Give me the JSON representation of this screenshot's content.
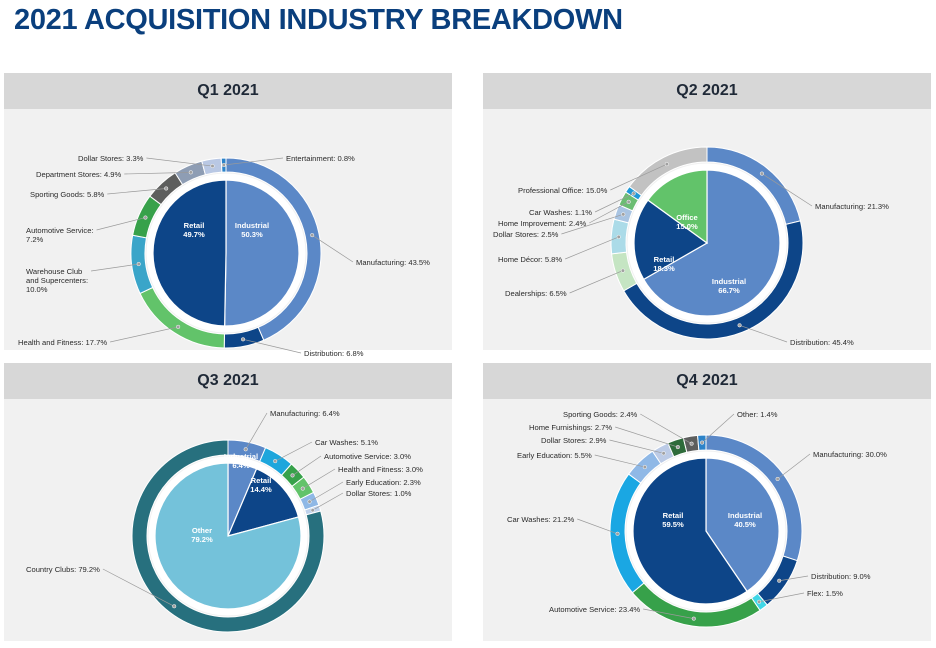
{
  "title": "2021 ACQUISITION INDUSTRY BREAKDOWN",
  "chart_data": [
    {
      "type": "pie",
      "title": "Q1 2021",
      "inner": [
        {
          "name": "Industrial",
          "value": 50.3,
          "color": "#5b88c7"
        },
        {
          "name": "Retail",
          "value": 49.7,
          "color": "#0d4588"
        }
      ],
      "outer": [
        {
          "name": "Manufacturing",
          "value": 43.5,
          "color": "#5b88c7"
        },
        {
          "name": "Distribution",
          "value": 6.8,
          "color": "#0d4588"
        },
        {
          "name": "Health and Fitness",
          "value": 17.7,
          "color": "#62c36a"
        },
        {
          "name": "Warehouse Club and Supercenters",
          "value": 10.0,
          "color": "#3aa5c9"
        },
        {
          "name": "Automotive Service",
          "value": 7.2,
          "color": "#37a14a"
        },
        {
          "name": "Sporting Goods",
          "value": 5.8,
          "color": "#5d5e5d"
        },
        {
          "name": "Department Stores",
          "value": 4.9,
          "color": "#8e9db4"
        },
        {
          "name": "Dollar Stores",
          "value": 3.3,
          "color": "#b9c8e4"
        },
        {
          "name": "Entertainment",
          "value": 0.8,
          "color": "#2c83c9"
        }
      ]
    },
    {
      "type": "pie",
      "title": "Q2 2021",
      "inner": [
        {
          "name": "Industrial",
          "value": 66.7,
          "color": "#5b88c7"
        },
        {
          "name": "Retail",
          "value": 18.3,
          "color": "#0d4588"
        },
        {
          "name": "Office",
          "value": 15.0,
          "color": "#62c36a"
        }
      ],
      "outer": [
        {
          "name": "Manufacturing",
          "value": 21.3,
          "color": "#5b88c7"
        },
        {
          "name": "Distribution",
          "value": 45.4,
          "color": "#0d4588"
        },
        {
          "name": "Dealerships",
          "value": 6.5,
          "color": "#c5e5c3"
        },
        {
          "name": "Home Décor",
          "value": 5.8,
          "color": "#abdbe8"
        },
        {
          "name": "Dollar Stores",
          "value": 2.5,
          "color": "#a9c4e2"
        },
        {
          "name": "Home Improvement",
          "value": 2.4,
          "color": "#6bbd72"
        },
        {
          "name": "Car Washes",
          "value": 1.1,
          "color": "#1f98d6"
        },
        {
          "name": "Professional Office",
          "value": 15.0,
          "color": "#c2c2c2"
        }
      ]
    },
    {
      "type": "pie",
      "title": "Q3 2021",
      "inner": [
        {
          "name": "Industrial",
          "value": 6.4,
          "color": "#5b88c7"
        },
        {
          "name": "Retail",
          "value": 14.4,
          "color": "#0d4588"
        },
        {
          "name": "Other",
          "value": 79.2,
          "color": "#74c2da"
        }
      ],
      "outer": [
        {
          "name": "Manufacturing",
          "value": 6.4,
          "color": "#5b88c7"
        },
        {
          "name": "Car Washes",
          "value": 5.1,
          "color": "#1ea6dc"
        },
        {
          "name": "Automotive Service",
          "value": 3.0,
          "color": "#37a14a"
        },
        {
          "name": "Health and Fitness",
          "value": 3.0,
          "color": "#62c36a"
        },
        {
          "name": "Early Education",
          "value": 2.3,
          "color": "#8fb8e6"
        },
        {
          "name": "Dollar Stores",
          "value": 1.0,
          "color": "#bfd2ec"
        },
        {
          "name": "Country Clubs",
          "value": 79.2,
          "color": "#27707e"
        }
      ]
    },
    {
      "type": "pie",
      "title": "Q4 2021",
      "inner": [
        {
          "name": "Industrial",
          "value": 40.5,
          "color": "#5b88c7"
        },
        {
          "name": "Retail",
          "value": 59.5,
          "color": "#0d4588"
        }
      ],
      "outer": [
        {
          "name": "Manufacturing",
          "value": 30.0,
          "color": "#5b88c7"
        },
        {
          "name": "Distribution",
          "value": 9.0,
          "color": "#0d4588"
        },
        {
          "name": "Flex",
          "value": 1.5,
          "color": "#40d6e6"
        },
        {
          "name": "Automotive Service",
          "value": 23.4,
          "color": "#37a14a"
        },
        {
          "name": "Car Washes",
          "value": 21.2,
          "color": "#1aa7e3"
        },
        {
          "name": "Early Education",
          "value": 5.5,
          "color": "#8fb8e6"
        },
        {
          "name": "Dollar Stores",
          "value": 2.9,
          "color": "#bccbe6"
        },
        {
          "name": "Home Furnishings",
          "value": 2.7,
          "color": "#2e6b3a"
        },
        {
          "name": "Sporting Goods",
          "value": 2.4,
          "color": "#5d5e5d"
        },
        {
          "name": "Other",
          "value": 1.4,
          "color": "#2c83c9"
        }
      ]
    }
  ]
}
